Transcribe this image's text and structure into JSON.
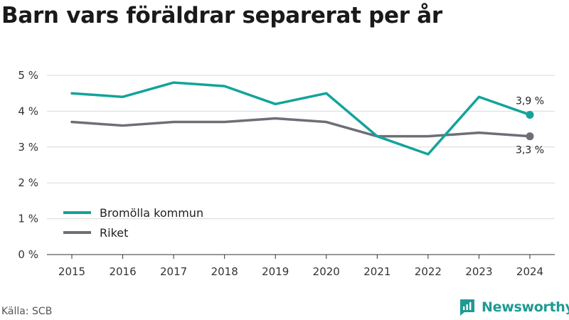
{
  "title": "Barn vars föräldrar separerat per år",
  "source": "Källa: SCB",
  "brand": {
    "name": "Newsworthy",
    "icon": "newsworthy-logo-icon"
  },
  "colors": {
    "primary": "#13a39a",
    "secondary": "#6e6e76",
    "grid": "#d9d9d9",
    "brand": "#1f9a93"
  },
  "chart_data": {
    "type": "line",
    "title": "Barn vars föräldrar separerat per år",
    "xlabel": "",
    "ylabel": "",
    "x": [
      "2015",
      "2016",
      "2017",
      "2018",
      "2019",
      "2020",
      "2021",
      "2022",
      "2023",
      "2024"
    ],
    "ylim": [
      0,
      5
    ],
    "yticks": [
      "0 %",
      "1 %",
      "2 %",
      "3 %",
      "4 %",
      "5 %"
    ],
    "grid": true,
    "legend_position": "bottom-left",
    "series": [
      {
        "name": "Bromölla kommun",
        "color": "#13a39a",
        "values": [
          4.5,
          4.4,
          4.8,
          4.7,
          4.2,
          4.5,
          3.3,
          2.8,
          4.4,
          3.9
        ],
        "end_label": "3,9 %"
      },
      {
        "name": "Riket",
        "color": "#6e6e76",
        "values": [
          3.7,
          3.6,
          3.7,
          3.7,
          3.8,
          3.7,
          3.3,
          3.3,
          3.4,
          3.3
        ],
        "end_label": "3,3 %"
      }
    ]
  }
}
